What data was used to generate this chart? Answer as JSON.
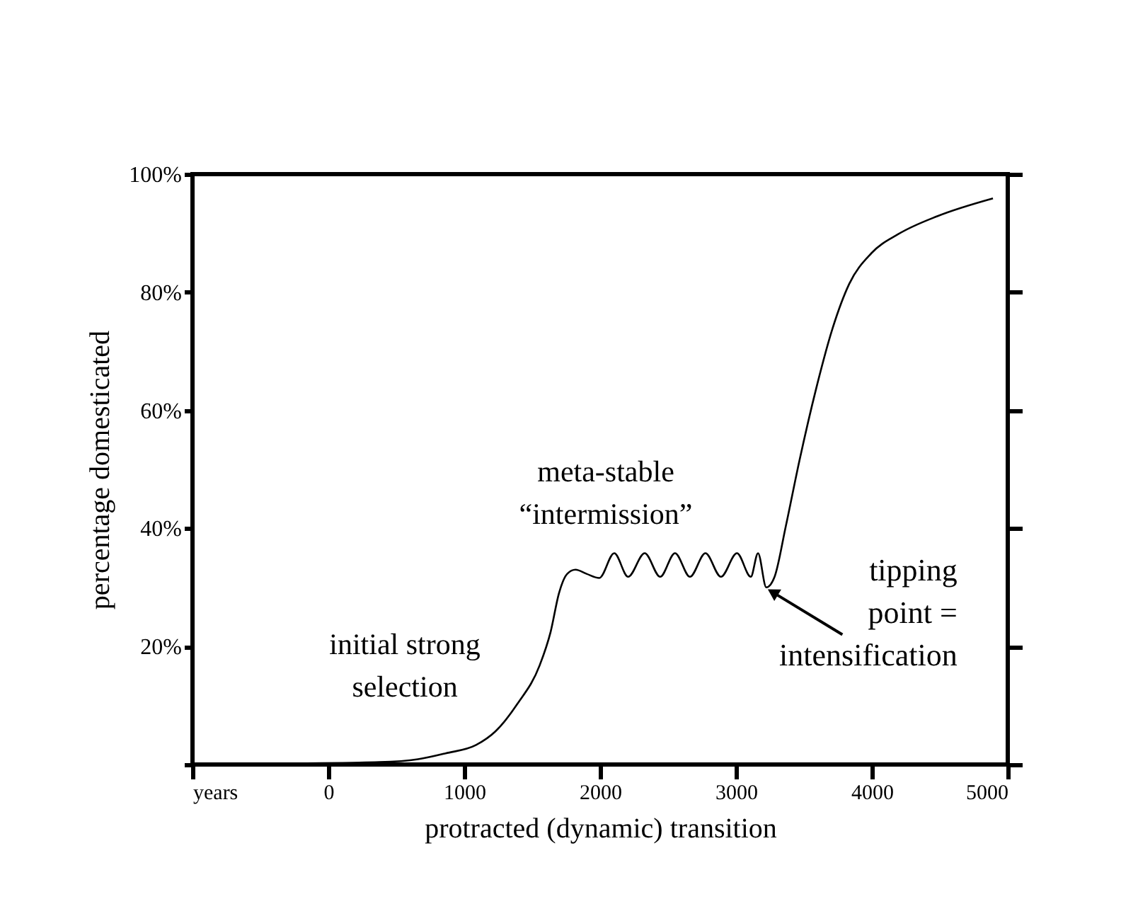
{
  "chart_data": {
    "type": "line",
    "xlabel": "protracted (dynamic) transition",
    "ylabel": "percentage domesticated",
    "x": [
      -967,
      -235,
      375,
      660,
      863,
      1087,
      1229,
      1392,
      1555,
      1636,
      1697,
      1758,
      1819,
      1900,
      1994,
      2104,
      2206,
      2328,
      2442,
      2551,
      2661,
      2775,
      2889,
      3007,
      3109,
      3162,
      3223,
      3284,
      3365,
      3467,
      3589,
      3711,
      3833,
      3996,
      4199,
      4484,
      4891
    ],
    "series": [
      {
        "color": "#000000",
        "values": [
          0,
          0.2,
          0.4,
          0.9,
          1.9,
          3.3,
          5.6,
          10.3,
          16.8,
          22.5,
          29,
          32.3,
          33,
          32.3,
          31.6,
          35.8,
          31.8,
          35.8,
          31.8,
          35.8,
          31.8,
          35.8,
          31.8,
          35.8,
          31.8,
          35.8,
          30,
          31.8,
          40.2,
          51.5,
          63.6,
          73.9,
          81.4,
          86.6,
          89.9,
          92.9,
          95.9
        ]
      }
    ],
    "xlim": [
      -1000,
      5000
    ],
    "xticks": [
      {
        "value": -1000,
        "label": "years"
      },
      0,
      1000,
      2000,
      3000,
      4000,
      5000
    ],
    "ylim": [
      0,
      100
    ],
    "yticks": [
      {
        "value": 0,
        "label": null
      },
      {
        "value": 20,
        "label": "20%"
      },
      {
        "value": 40,
        "label": "40%"
      },
      {
        "value": 60,
        "label": "60%"
      },
      {
        "value": 80,
        "label": "80%"
      },
      {
        "value": 100,
        "label": "100%"
      }
    ],
    "annotations": [
      "initial strong\nselection",
      "meta-stable\n“intermission”",
      {
        "text": "tipping\npoint =\nintensification",
        "x": 3223,
        "y": 30
      }
    ],
    "grid": false,
    "marker": "none",
    "line_style": "solid"
  }
}
